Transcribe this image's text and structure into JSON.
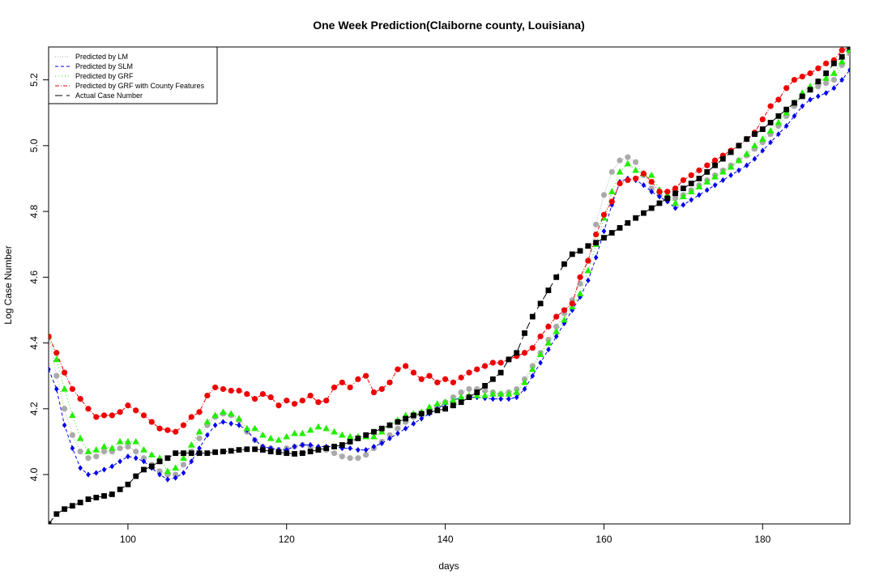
{
  "chart_data": {
    "type": "line",
    "title": "One Week Prediction(Claiborne county, Louisiana)",
    "xlabel": "days",
    "ylabel": "Log Case Number",
    "xlim": [
      90,
      191
    ],
    "ylim": [
      3.85,
      5.3
    ],
    "x_ticks": [
      100,
      120,
      140,
      160,
      180
    ],
    "y_ticks": [
      4.0,
      4.2,
      4.4,
      4.6,
      4.8,
      5.0,
      5.2
    ],
    "grid": false,
    "legend_position": "top-left",
    "x": [
      90,
      91,
      92,
      93,
      94,
      95,
      96,
      97,
      98,
      99,
      100,
      101,
      102,
      103,
      104,
      105,
      106,
      107,
      108,
      109,
      110,
      111,
      112,
      113,
      114,
      115,
      116,
      117,
      118,
      119,
      120,
      121,
      122,
      123,
      124,
      125,
      126,
      127,
      128,
      129,
      130,
      131,
      132,
      133,
      134,
      135,
      136,
      137,
      138,
      139,
      140,
      141,
      142,
      143,
      144,
      145,
      146,
      147,
      148,
      149,
      150,
      151,
      152,
      153,
      154,
      155,
      156,
      157,
      158,
      159,
      160,
      161,
      162,
      163,
      164,
      165,
      166,
      167,
      168,
      169,
      170,
      171,
      172,
      173,
      174,
      175,
      176,
      177,
      178,
      179,
      180,
      181,
      182,
      183,
      184,
      185,
      186,
      187,
      188,
      189,
      190,
      191
    ],
    "series": [
      {
        "name": "Predicted by LM",
        "color": "#aaaaaa",
        "marker": "circle",
        "values": [
          4.42,
          4.3,
          4.2,
          4.12,
          4.07,
          4.05,
          4.055,
          4.07,
          4.07,
          4.08,
          4.085,
          4.07,
          4.05,
          4.03,
          4.01,
          4.0,
          4.0,
          4.03,
          4.07,
          4.11,
          4.15,
          4.175,
          4.185,
          4.18,
          4.165,
          4.13,
          4.105,
          4.085,
          4.08,
          4.075,
          4.08,
          4.085,
          4.09,
          4.085,
          4.08,
          4.075,
          4.065,
          4.055,
          4.05,
          4.05,
          4.06,
          4.08,
          4.1,
          4.12,
          4.14,
          4.16,
          4.175,
          4.185,
          4.195,
          4.205,
          4.22,
          4.235,
          4.25,
          4.26,
          4.26,
          4.255,
          4.25,
          4.245,
          4.25,
          4.26,
          4.29,
          4.33,
          4.37,
          4.41,
          4.45,
          4.49,
          4.53,
          4.58,
          4.65,
          4.76,
          4.85,
          4.92,
          4.955,
          4.965,
          4.95,
          4.91,
          4.87,
          4.85,
          4.835,
          4.84,
          4.85,
          4.865,
          4.88,
          4.895,
          4.91,
          4.925,
          4.94,
          4.955,
          4.97,
          4.99,
          5.01,
          5.035,
          5.06,
          5.09,
          5.12,
          5.15,
          5.17,
          5.18,
          5.19,
          5.2,
          5.245,
          5.28
        ]
      },
      {
        "name": "Predicted by SLM",
        "color": "#0000ee",
        "marker": "diamond",
        "values": [
          4.32,
          4.26,
          4.15,
          4.08,
          4.02,
          4.0,
          4.005,
          4.015,
          4.025,
          4.04,
          4.055,
          4.05,
          4.04,
          4.02,
          4.0,
          3.985,
          3.99,
          4.005,
          4.04,
          4.08,
          4.12,
          4.15,
          4.16,
          4.155,
          4.15,
          4.135,
          4.105,
          4.085,
          4.08,
          4.075,
          4.075,
          4.085,
          4.09,
          4.09,
          4.085,
          4.085,
          4.085,
          4.08,
          4.08,
          4.075,
          4.075,
          4.085,
          4.095,
          4.11,
          4.125,
          4.14,
          4.155,
          4.17,
          4.185,
          4.2,
          4.215,
          4.225,
          4.235,
          4.235,
          4.235,
          4.232,
          4.23,
          4.23,
          4.23,
          4.235,
          4.26,
          4.3,
          4.34,
          4.38,
          4.42,
          4.46,
          4.5,
          4.54,
          4.59,
          4.66,
          4.74,
          4.82,
          4.89,
          4.9,
          4.895,
          4.88,
          4.86,
          4.845,
          4.83,
          4.81,
          4.82,
          4.835,
          4.85,
          4.865,
          4.88,
          4.895,
          4.91,
          4.925,
          4.94,
          4.96,
          4.985,
          5.01,
          5.035,
          5.06,
          5.09,
          5.12,
          5.14,
          5.15,
          5.16,
          5.175,
          5.2,
          5.23
        ]
      },
      {
        "name": "Predicted by GRF",
        "color": "#22ee00",
        "marker": "triangle",
        "values": [
          4.42,
          4.35,
          4.26,
          4.18,
          4.11,
          4.07,
          4.075,
          4.085,
          4.08,
          4.1,
          4.1,
          4.1,
          4.075,
          4.06,
          4.05,
          4.01,
          4.02,
          4.05,
          4.09,
          4.13,
          4.16,
          4.18,
          4.19,
          4.185,
          4.17,
          4.14,
          4.14,
          4.12,
          4.11,
          4.105,
          4.115,
          4.125,
          4.125,
          4.135,
          4.145,
          4.14,
          4.13,
          4.12,
          4.115,
          4.115,
          4.115,
          4.115,
          4.13,
          4.15,
          4.165,
          4.18,
          4.185,
          4.19,
          4.205,
          4.215,
          4.22,
          4.225,
          4.235,
          4.24,
          4.24,
          4.24,
          4.245,
          4.245,
          4.245,
          4.25,
          4.28,
          4.32,
          4.365,
          4.4,
          4.435,
          4.47,
          4.51,
          4.55,
          4.62,
          4.7,
          4.78,
          4.86,
          4.92,
          4.945,
          4.925,
          4.915,
          4.91,
          4.865,
          4.85,
          4.825,
          4.845,
          4.86,
          4.875,
          4.89,
          4.905,
          4.92,
          4.935,
          4.955,
          4.975,
          5.0,
          5.02,
          5.045,
          5.07,
          5.1,
          5.13,
          5.16,
          5.18,
          5.195,
          5.205,
          5.22,
          5.255,
          5.29
        ]
      },
      {
        "name": "Predicted by GRF with County Features",
        "color": "#ee0000",
        "marker": "circle",
        "values": [
          4.42,
          4.37,
          4.31,
          4.26,
          4.23,
          4.2,
          4.175,
          4.18,
          4.18,
          4.19,
          4.21,
          4.195,
          4.18,
          4.16,
          4.14,
          4.135,
          4.13,
          4.15,
          4.175,
          4.19,
          4.24,
          4.265,
          4.26,
          4.255,
          4.255,
          4.245,
          4.23,
          4.245,
          4.235,
          4.21,
          4.225,
          4.215,
          4.225,
          4.24,
          4.22,
          4.225,
          4.265,
          4.28,
          4.265,
          4.29,
          4.3,
          4.25,
          4.26,
          4.28,
          4.32,
          4.33,
          4.31,
          4.29,
          4.3,
          4.28,
          4.29,
          4.28,
          4.295,
          4.31,
          4.32,
          4.33,
          4.34,
          4.34,
          4.35,
          4.36,
          4.37,
          4.385,
          4.42,
          4.45,
          4.48,
          4.5,
          4.52,
          4.6,
          4.65,
          4.73,
          4.79,
          4.83,
          4.885,
          4.895,
          4.9,
          4.915,
          4.89,
          4.86,
          4.86,
          4.87,
          4.895,
          4.91,
          4.925,
          4.94,
          4.955,
          4.97,
          4.985,
          5.0,
          5.02,
          5.04,
          5.08,
          5.12,
          5.14,
          5.175,
          5.2,
          5.21,
          5.22,
          5.235,
          5.25,
          5.26,
          5.29,
          5.3
        ]
      },
      {
        "name": "Actual Case Number",
        "color": "#000000",
        "marker": "square",
        "values": [
          3.85,
          3.88,
          3.895,
          3.905,
          3.915,
          3.925,
          3.93,
          3.935,
          3.94,
          3.955,
          3.97,
          3.995,
          4.015,
          4.025,
          4.04,
          4.05,
          4.065,
          4.065,
          4.065,
          4.065,
          4.065,
          4.068,
          4.07,
          4.072,
          4.075,
          4.077,
          4.077,
          4.075,
          4.07,
          4.068,
          4.065,
          4.063,
          4.065,
          4.07,
          4.075,
          4.08,
          4.085,
          4.09,
          4.1,
          4.11,
          4.12,
          4.13,
          4.14,
          4.15,
          4.16,
          4.17,
          4.18,
          4.185,
          4.19,
          4.195,
          4.2,
          4.21,
          4.22,
          4.235,
          4.25,
          4.27,
          4.29,
          4.31,
          4.35,
          4.37,
          4.43,
          4.48,
          4.52,
          4.56,
          4.6,
          4.64,
          4.67,
          4.68,
          4.695,
          4.705,
          4.72,
          4.735,
          4.75,
          4.765,
          4.78,
          4.795,
          4.81,
          4.825,
          4.84,
          4.855,
          4.87,
          4.885,
          4.9,
          4.92,
          4.94,
          4.96,
          4.98,
          5.0,
          5.02,
          5.035,
          5.05,
          5.07,
          5.09,
          5.11,
          5.13,
          5.15,
          5.17,
          5.195,
          5.22,
          5.25,
          5.27,
          5.3
        ]
      }
    ]
  }
}
